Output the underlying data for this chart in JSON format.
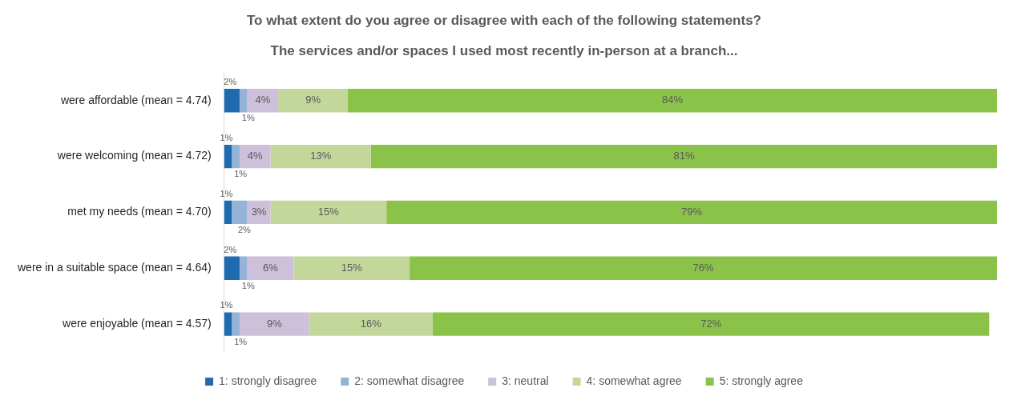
{
  "chart_data": {
    "type": "bar",
    "orientation": "horizontal",
    "stacked": true,
    "title": "To what extent do you agree or disagree with each of the following statements?",
    "subtitle": "The services and/or spaces I used most recently in-person at a branch...",
    "categories": [
      "were affordable (mean = 4.74)",
      "were welcoming (mean = 4.72)",
      "met my needs (mean = 4.70)",
      "were in a suitable space (mean = 4.64)",
      "were enjoyable (mean = 4.57)"
    ],
    "xlim": [
      0,
      100
    ],
    "tick_labels": "y",
    "legend": "bottom",
    "series": [
      {
        "name": "1: strongly disagree",
        "color": "#1f6bb0",
        "values": [
          2,
          1,
          1,
          2,
          1
        ],
        "value_labels": [
          "2%",
          "1%",
          "1%",
          "2%",
          "1%"
        ]
      },
      {
        "name": "2: somewhat disagree",
        "color": "#95b3d7",
        "values": [
          1,
          1,
          2,
          1,
          1
        ],
        "value_labels": [
          "1%",
          "1%",
          "2%",
          "1%",
          "1%"
        ]
      },
      {
        "name": "3: neutral",
        "color": "#ccc0da",
        "values": [
          4,
          4,
          3,
          6,
          9
        ],
        "value_labels": [
          "4%",
          "4%",
          "3%",
          "6%",
          "9%"
        ]
      },
      {
        "name": "4: somewhat agree",
        "color": "#c4d79b",
        "values": [
          9,
          13,
          15,
          15,
          16
        ],
        "value_labels": [
          "9%",
          "13%",
          "15%",
          "15%",
          "16%"
        ]
      },
      {
        "name": "5: strongly agree",
        "color": "#8bc34a",
        "values": [
          84,
          81,
          79,
          76,
          72
        ],
        "value_labels": [
          "84%",
          "81%",
          "79%",
          "76%",
          "72%"
        ]
      }
    ]
  }
}
